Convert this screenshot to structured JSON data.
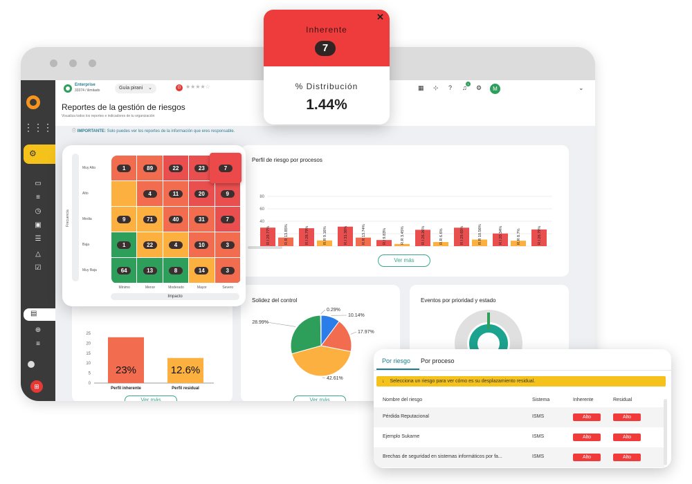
{
  "header": {
    "plan": "Enterprise",
    "plan_sub": "33374 / ilimitado",
    "guide": "Guía pirani",
    "page_title": "Reportes de la gestión de riesgos",
    "page_subtitle": "Visualiza todos los reportes e indicadores de tu organización",
    "important_label": "IMPORTANTE:",
    "important_text": "Solo puedes ver los reportes de la información que eres responsable.",
    "avatar": "M",
    "notification_count": "1"
  },
  "inherent_card": {
    "title": "Inherente",
    "value": "7",
    "dist_label": "% Distribución",
    "dist_value": "1.44%"
  },
  "heatmap": {
    "y_title": "Frecuencia",
    "x_title": "Impacto",
    "rows": [
      "Muy Alto",
      "Alto",
      "Media",
      "Baja",
      "Muy Baja"
    ],
    "cols": [
      "Mínimo",
      "Menor",
      "Moderado",
      "Mayor",
      "Severo"
    ],
    "values": [
      [
        "1",
        "89",
        "22",
        "23",
        "7"
      ],
      [
        "",
        "4",
        "11",
        "20",
        "9"
      ],
      [
        "9",
        "71",
        "40",
        "31",
        "7"
      ],
      [
        "1",
        "22",
        "4",
        "10",
        "3"
      ],
      [
        "64",
        "13",
        "8",
        "14",
        "3"
      ]
    ],
    "colors": [
      [
        "#f26c4f",
        "#f26c4f",
        "#ea4f4f",
        "#ea4f4f",
        "#ea4f4f"
      ],
      [
        "#fbb040",
        "#f26c4f",
        "#f26c4f",
        "#ea4f4f",
        "#ea4f4f"
      ],
      [
        "#fbb040",
        "#fbb040",
        "#f26c4f",
        "#f26c4f",
        "#ea4f4f"
      ],
      [
        "#2e9e5b",
        "#fbb040",
        "#fbb040",
        "#f26c4f",
        "#f26c4f"
      ],
      [
        "#2e9e5b",
        "#2e9e5b",
        "#2e9e5b",
        "#fbb040",
        "#f26c4f"
      ]
    ]
  },
  "profile_chart": {
    "title": "Perfil de riesgo por procesos",
    "button": "Ver más",
    "chart_data": {
      "type": "bar",
      "categories": [
        "Cod. 10",
        "Cod. 23",
        "Cod. 35",
        "Cod. 40",
        "Cod. 42",
        "Cod. 46",
        "Cod. 56",
        "Coc"
      ],
      "ylim": [
        0,
        80
      ],
      "yticks": [
        0,
        20,
        40,
        60,
        80
      ],
      "series": [
        {
          "color": "#ea4f4f",
          "values": [
            29.77,
            28.79,
            31.36,
            9.83,
            26.26,
            29.65,
            20.34,
            26.79
          ],
          "labels": [
            "R.I 29.77%",
            "R.I 28.79%",
            "R.I 31.36%",
            "R.I 9.83%",
            "R.I 26.26%",
            "R.I 29.65%",
            "R.I 20.34%",
            "R.I 26.79%"
          ]
        },
        {
          "color": "#f26c4f",
          "values": [
            13.85,
            null,
            13.74,
            null,
            null,
            null,
            null,
            null
          ],
          "labels": [
            "R.R 13.85%",
            "",
            "R.R 13.74%",
            "",
            "",
            "",
            "",
            ""
          ]
        },
        {
          "color": "#fbb040",
          "values": [
            null,
            9.16,
            null,
            3.45,
            6.6,
            10.56,
            8.7,
            null
          ],
          "labels": [
            "",
            "R.R 9.16%",
            "",
            "R.R 3.45%",
            "R.R 6.6%",
            "R.R 10.56%",
            "R.R 8.7%",
            ""
          ]
        }
      ]
    }
  },
  "inh_res_chart": {
    "button": "Ver más",
    "chart_data": {
      "type": "bar",
      "categories": [
        "Perfil inherente",
        "Perfil residual"
      ],
      "values": [
        23,
        12.6
      ],
      "labels": [
        "23%",
        "12.6%"
      ],
      "colors": [
        "#f26c4f",
        "#fbb040"
      ],
      "ylim": [
        0,
        25
      ],
      "yticks": [
        0,
        5,
        10,
        15,
        20,
        25
      ]
    }
  },
  "solidez_chart": {
    "title": "Solidez del control",
    "button": "Ver más",
    "chart_data": {
      "type": "pie",
      "values": [
        10.14,
        17.97,
        42.61,
        28.99,
        0.29
      ],
      "labels": [
        "10.14%",
        "17.97%",
        "42.61%",
        "28.99%",
        "0.29%"
      ],
      "colors": [
        "#2b7de9",
        "#f26c4f",
        "#fbb040",
        "#2e9e5b",
        "#ea4f4f"
      ]
    }
  },
  "events_chart": {
    "title": "Eventos por prioridad y estado"
  },
  "risk_table": {
    "tabs": [
      "Por riesgo",
      "Por proceso"
    ],
    "notice": "Selecciona un riesgo para ver cómo es su desplazamiento residual.",
    "columns": [
      "Nombre del riesgo",
      "Sistema",
      "Inherente",
      "Residual"
    ],
    "rows": [
      {
        "name": "Pérdida Reputacional",
        "system": "ISMS",
        "inherent": "Alto",
        "residual": "Alto"
      },
      {
        "name": "Ejemplo Sukarne",
        "system": "ISMS",
        "inherent": "Alto",
        "residual": "Alto"
      },
      {
        "name": "Brechas de seguridad en sistemas informáticos por fa...",
        "system": "ISMS",
        "inherent": "Alto",
        "residual": "Alto"
      }
    ]
  }
}
